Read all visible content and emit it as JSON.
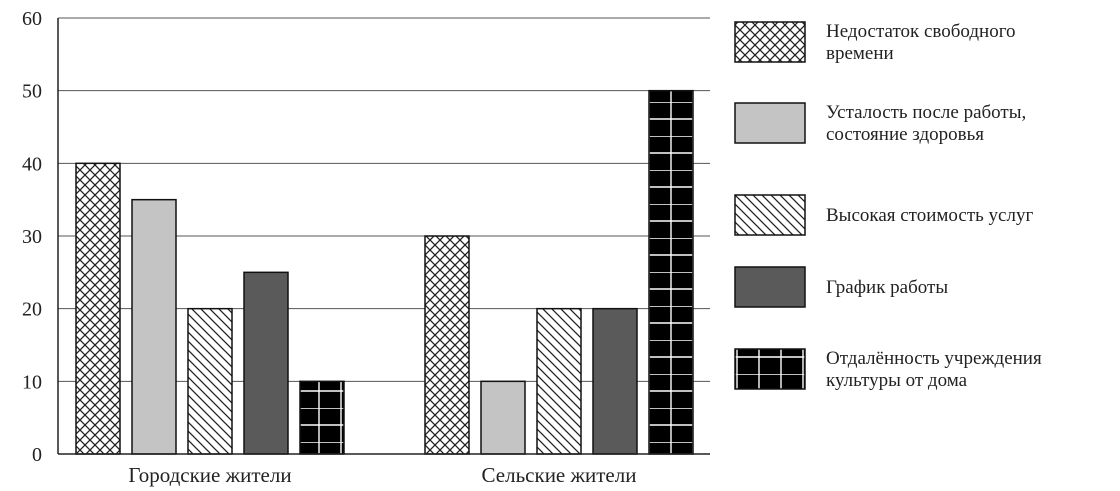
{
  "chart_data": {
    "type": "bar",
    "title": "",
    "xlabel": "",
    "ylabel": "",
    "ylim": [
      0,
      60
    ],
    "yticks": [
      0,
      10,
      20,
      30,
      40,
      50,
      60
    ],
    "grid": "horizontal",
    "legend_position": "right",
    "categories": [
      "Городские жители",
      "Сельские жители"
    ],
    "series": [
      {
        "name": "Недостаток свободного времени",
        "values": [
          40,
          30
        ],
        "pattern": "crosshatch",
        "color": "#ffffff"
      },
      {
        "name": "Усталость после работы, состояние здоровья",
        "values": [
          35,
          10
        ],
        "pattern": "solid",
        "color": "#c4c4c4"
      },
      {
        "name": "Высокая стоимость услуг",
        "values": [
          20,
          20
        ],
        "pattern": "diagonal",
        "color": "#ffffff"
      },
      {
        "name": "График работы",
        "values": [
          25,
          20
        ],
        "pattern": "solid",
        "color": "#5a5a5a"
      },
      {
        "name": "Отдалённость учреждения культуры от дома",
        "values": [
          10,
          50
        ],
        "pattern": "brick",
        "color": "#000000"
      }
    ]
  }
}
